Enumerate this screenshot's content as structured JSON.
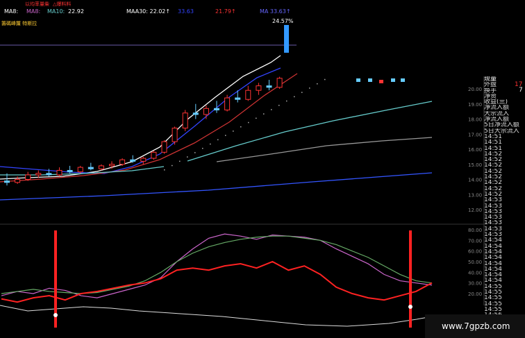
{
  "header": {
    "row0": [
      "以均率量柴",
      "△爆料料"
    ],
    "ma_items": [
      {
        "label": "MA8:",
        "color": "#ffffff"
      },
      {
        "label": "MA8:",
        "color": "#cc66cc"
      },
      {
        "label": "MA10:",
        "color": "#66cccc"
      },
      {
        "label": "22.92",
        "color": "#ffffff"
      },
      {
        "label": "MAA30: 22.02↑",
        "color": "#ffffff"
      },
      {
        "label": "33.63",
        "color": "#3344ff"
      },
      {
        "label": "21.79↑",
        "color": "#ff3333"
      },
      {
        "label": "MA 33.63↑",
        "color": "#6666ff"
      }
    ],
    "subtitle": "籌碼峰簾 特斯拉"
  },
  "annotation_pct": "24.57",
  "side_panel": {
    "rows": [
      "现量",
      "外盘",
      "换手",
      "净资",
      "收益(亖)",
      "净流入额",
      "大宗流入",
      "净流入额",
      "5日净流入额",
      "5日大宗流入",
      "14:51",
      "14:51",
      "14:51",
      "14:52",
      "14:52",
      "14:52",
      "14:52",
      "14:52",
      "14:52",
      "14:52",
      "14:52",
      "14:53",
      "14:53",
      "14:53",
      "14:53",
      "14:53",
      "14:53",
      "14:53",
      "14:54",
      "14:54",
      "14:54",
      "14:54",
      "14:54",
      "14:54",
      "14:54",
      "14:54",
      "14:55",
      "14:55",
      "14:55",
      "14:55",
      "14:55",
      "14:56"
    ],
    "value_red": "17",
    "value_white": "7"
  },
  "watermark": "www.7gpzb.com",
  "colors": {
    "up": "#ff3333",
    "down": "#66ccff",
    "ma5": "#ffffff",
    "ma10": "#3344ff",
    "ma20": "#cc3333",
    "ma60": "#66cccc",
    "ma120": "#999999",
    "ma250": "#3355ff",
    "k": "#cc66cc",
    "d": "#66aa66",
    "j": "#ff2222"
  },
  "chart_data": [
    {
      "type": "candlestick",
      "ylim": [
        11.5,
        21.0
      ],
      "yticks": [
        "20.00",
        "19.00",
        "18.00",
        "17.00",
        "16.00",
        "15.00",
        "14.00",
        "13.00",
        "12.00"
      ],
      "candles": [
        [
          13.9,
          14.4,
          13.6,
          13.8
        ],
        [
          13.8,
          14.2,
          13.7,
          14.0
        ],
        [
          14.0,
          14.5,
          13.9,
          14.3
        ],
        [
          14.3,
          14.6,
          14.1,
          14.4
        ],
        [
          14.4,
          14.7,
          14.2,
          14.3
        ],
        [
          14.3,
          14.8,
          14.2,
          14.6
        ],
        [
          14.6,
          14.9,
          14.4,
          14.5
        ],
        [
          14.5,
          14.9,
          14.4,
          14.8
        ],
        [
          14.8,
          15.1,
          14.6,
          14.7
        ],
        [
          14.7,
          15.0,
          14.6,
          14.9
        ],
        [
          14.9,
          15.2,
          14.7,
          15.0
        ],
        [
          15.0,
          15.4,
          14.9,
          15.3
        ],
        [
          15.3,
          15.6,
          15.1,
          15.2
        ],
        [
          15.2,
          15.5,
          15.0,
          15.4
        ],
        [
          15.4,
          15.9,
          15.3,
          15.8
        ],
        [
          15.8,
          16.6,
          15.7,
          16.5
        ],
        [
          16.5,
          17.5,
          16.3,
          17.4
        ],
        [
          17.4,
          18.6,
          17.2,
          18.4
        ],
        [
          18.4,
          19.0,
          18.0,
          18.3
        ],
        [
          18.3,
          18.9,
          18.0,
          18.7
        ],
        [
          18.7,
          19.2,
          18.4,
          18.6
        ],
        [
          18.6,
          19.6,
          18.5,
          19.4
        ],
        [
          19.4,
          19.9,
          19.1,
          19.3
        ],
        [
          19.3,
          20.2,
          19.2,
          19.9
        ],
        [
          19.9,
          20.4,
          19.6,
          20.2
        ],
        [
          20.2,
          20.6,
          19.9,
          20.1
        ],
        [
          20.1,
          20.8,
          20.0,
          20.7
        ]
      ]
    },
    {
      "type": "line",
      "ylim": [
        0,
        85
      ],
      "yticks": [
        "80.00",
        "70.00",
        "60.00",
        "50.00",
        "40.00",
        "30.00",
        "20.00"
      ],
      "series": [
        {
          "values": [
            18,
            22,
            20,
            25,
            23,
            18,
            16,
            20,
            24,
            28,
            35,
            50,
            62,
            72,
            76,
            74,
            71,
            75,
            74,
            73,
            70,
            62,
            55,
            48,
            38,
            32,
            30,
            28
          ]
        },
        {
          "values": [
            20,
            22,
            24,
            22,
            21,
            20,
            21,
            24,
            27,
            32,
            40,
            50,
            58,
            64,
            68,
            71,
            73,
            74,
            74,
            72,
            70,
            66,
            60,
            54,
            46,
            38,
            32,
            30
          ]
        },
        {
          "values": [
            15,
            12,
            16,
            18,
            14,
            20,
            22,
            25,
            28,
            30,
            34,
            42,
            44,
            42,
            46,
            48,
            44,
            50,
            42,
            46,
            38,
            26,
            20,
            16,
            14,
            18,
            22,
            30
          ]
        }
      ]
    }
  ]
}
